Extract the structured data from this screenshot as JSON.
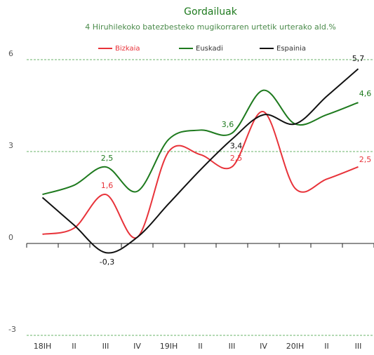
{
  "chart_data": {
    "type": "line",
    "title": "Gordailuak",
    "subtitle": "4 Hiruhilekoko batezbesteko mugikorraren urtetik urterako ald.%",
    "categories": [
      "18IH",
      "II",
      "III",
      "IV",
      "19IH",
      "II",
      "III",
      "IV",
      "20IH",
      "II",
      "III"
    ],
    "series": [
      {
        "name": "Bizkaia",
        "color": "#e8333a",
        "values": [
          0.3,
          0.5,
          1.6,
          0.2,
          3.0,
          2.9,
          2.5,
          4.3,
          1.8,
          2.1,
          2.5
        ],
        "value_labels": [
          null,
          null,
          "1,6",
          null,
          null,
          null,
          "2,5",
          null,
          null,
          null,
          "2,5"
        ]
      },
      {
        "name": "Euskadi",
        "color": "#1e7a1e",
        "values": [
          1.6,
          1.9,
          2.5,
          1.7,
          3.4,
          3.7,
          3.6,
          5.0,
          3.9,
          4.2,
          4.6
        ],
        "value_labels": [
          null,
          null,
          "2,5",
          null,
          null,
          null,
          "3,6",
          null,
          null,
          null,
          "4,6"
        ]
      },
      {
        "name": "Espainia",
        "color": "#111111",
        "values": [
          1.5,
          0.6,
          -0.3,
          0.2,
          1.3,
          2.4,
          3.4,
          4.2,
          3.9,
          4.8,
          5.7
        ],
        "value_labels": [
          null,
          null,
          "-0,3",
          null,
          null,
          null,
          "3,4",
          null,
          null,
          null,
          "5,7"
        ]
      }
    ],
    "ylim": [
      -3,
      6
    ],
    "yticks": [
      -3,
      0,
      3,
      6
    ],
    "grid": true,
    "legend": "top"
  }
}
